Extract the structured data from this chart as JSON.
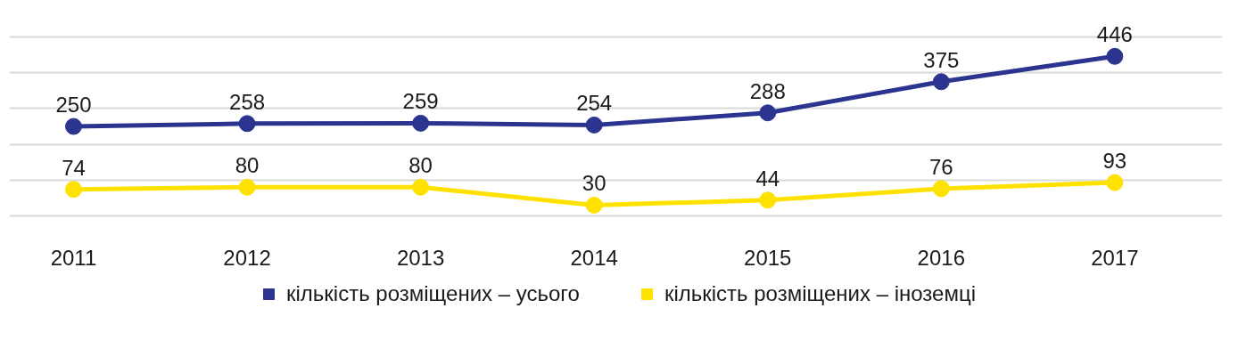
{
  "chart_data": {
    "type": "line",
    "categories": [
      "2011",
      "2012",
      "2013",
      "2014",
      "2015",
      "2016",
      "2017"
    ],
    "series": [
      {
        "name": "кількість розміщених – усього",
        "color": "#2b3590",
        "values": [
          250,
          258,
          259,
          254,
          288,
          375,
          446
        ]
      },
      {
        "name": "кількість розміщених – іноземці",
        "color": "#ffe100",
        "values": [
          74,
          80,
          80,
          30,
          44,
          76,
          93
        ]
      }
    ],
    "yticks": [
      {
        "value": 0,
        "label": null
      },
      {
        "value": 100,
        "label": null
      },
      {
        "value": 200,
        "label": null
      },
      {
        "value": 300,
        "label": null
      },
      {
        "value": 400,
        "label": null
      },
      {
        "value": 500,
        "label": null
      }
    ],
    "tick_labels": "x",
    "grid": "y",
    "legend": "bottom",
    "marker": "circle",
    "line_style": "solid",
    "data_labels": true
  }
}
